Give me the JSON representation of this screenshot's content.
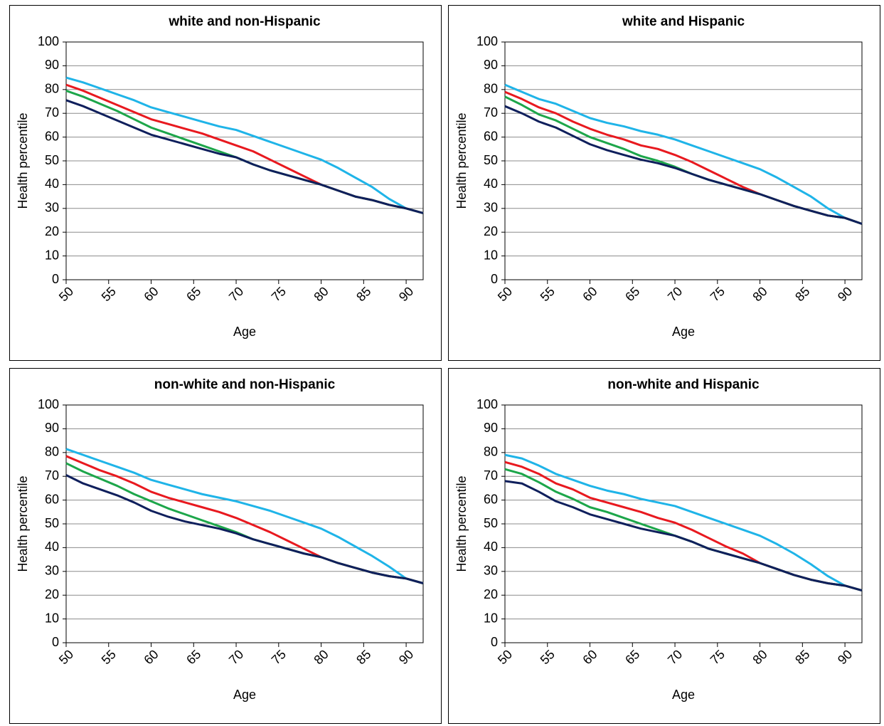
{
  "chart_data": [
    {
      "type": "line",
      "title": "white and non-Hispanic",
      "xlabel": "Age",
      "ylabel": "Health percentile",
      "x": [
        50,
        52,
        54,
        56,
        58,
        60,
        62,
        64,
        66,
        68,
        70,
        72,
        74,
        76,
        78,
        80,
        82,
        84,
        86,
        88,
        90,
        92
      ],
      "xlim": [
        50,
        92
      ],
      "xticks": [
        50,
        55,
        60,
        65,
        70,
        75,
        80,
        85,
        90
      ],
      "ylim": [
        0,
        100
      ],
      "yticks": [
        0,
        10,
        20,
        30,
        40,
        50,
        60,
        70,
        80,
        90,
        100
      ],
      "grid": true,
      "series": [
        {
          "color": "#1fb4e8",
          "values": [
            85,
            83,
            80.5,
            78,
            75.5,
            72.5,
            70.5,
            68.5,
            66.5,
            64.5,
            63,
            60.5,
            58,
            55.5,
            53,
            50.5,
            47,
            43,
            39,
            34,
            30,
            28
          ]
        },
        {
          "color": "#e8191f",
          "values": [
            82,
            79.5,
            76.5,
            73.5,
            70.5,
            67.5,
            65.5,
            63.5,
            61.5,
            59,
            56.5,
            54,
            50.5,
            47,
            43.5,
            40,
            37.5,
            35,
            33.5,
            31.5,
            30,
            28
          ]
        },
        {
          "color": "#1da64a",
          "values": [
            79.5,
            77,
            74,
            71,
            67.5,
            64,
            61.5,
            59,
            56.5,
            54,
            51.5,
            48.5,
            46,
            44,
            42,
            40,
            37.5,
            35,
            33.5,
            31.5,
            30,
            28
          ]
        },
        {
          "color": "#0f1f5c",
          "values": [
            75.5,
            73,
            70,
            67,
            64,
            61,
            59,
            57,
            55,
            53,
            51.5,
            48.5,
            46,
            44,
            42,
            40,
            37.5,
            35,
            33.5,
            31.5,
            30,
            28
          ]
        }
      ]
    },
    {
      "type": "line",
      "title": "white and Hispanic",
      "xlabel": "Age",
      "ylabel": "Health percentile",
      "x": [
        50,
        52,
        54,
        56,
        58,
        60,
        62,
        64,
        66,
        68,
        70,
        72,
        74,
        76,
        78,
        80,
        82,
        84,
        86,
        88,
        90,
        92
      ],
      "xlim": [
        50,
        92
      ],
      "xticks": [
        50,
        55,
        60,
        65,
        70,
        75,
        80,
        85,
        90
      ],
      "ylim": [
        0,
        100
      ],
      "yticks": [
        0,
        10,
        20,
        30,
        40,
        50,
        60,
        70,
        80,
        90,
        100
      ],
      "grid": true,
      "series": [
        {
          "color": "#1fb4e8",
          "values": [
            82,
            79,
            76,
            74,
            71,
            68,
            66,
            64.5,
            62.5,
            61,
            59,
            56.5,
            54,
            51.5,
            49,
            46.5,
            43,
            39,
            35,
            30,
            26,
            23.5
          ]
        },
        {
          "color": "#e8191f",
          "values": [
            79,
            76,
            72.5,
            70,
            66.5,
            63.5,
            61,
            59,
            56.5,
            55,
            52.5,
            49.5,
            46,
            42.5,
            39,
            36,
            33.5,
            31,
            29,
            27,
            26,
            23.5
          ]
        },
        {
          "color": "#1da64a",
          "values": [
            77,
            73.5,
            69.5,
            67,
            63.5,
            60,
            57.5,
            55,
            52,
            50,
            47.5,
            44.5,
            42,
            40,
            38,
            36,
            33.5,
            31,
            29,
            27,
            26,
            23.5
          ]
        },
        {
          "color": "#0f1f5c",
          "values": [
            73,
            70,
            66.5,
            64,
            60.5,
            57,
            54.5,
            52.5,
            50.5,
            49,
            47,
            44.5,
            42,
            40,
            38,
            36,
            33.5,
            31,
            29,
            27,
            26,
            23.5
          ]
        }
      ]
    },
    {
      "type": "line",
      "title": "non-white and non-Hispanic",
      "xlabel": "Age",
      "ylabel": "Health percentile",
      "x": [
        50,
        52,
        54,
        56,
        58,
        60,
        62,
        64,
        66,
        68,
        70,
        72,
        74,
        76,
        78,
        80,
        82,
        84,
        86,
        88,
        90,
        92
      ],
      "xlim": [
        50,
        92
      ],
      "xticks": [
        50,
        55,
        60,
        65,
        70,
        75,
        80,
        85,
        90
      ],
      "ylim": [
        0,
        100
      ],
      "yticks": [
        0,
        10,
        20,
        30,
        40,
        50,
        60,
        70,
        80,
        90,
        100
      ],
      "grid": true,
      "series": [
        {
          "color": "#1fb4e8",
          "values": [
            81.5,
            79,
            76.5,
            74,
            71.5,
            68.5,
            66.5,
            64.5,
            62.5,
            61,
            59.5,
            57.5,
            55.5,
            53,
            50.5,
            48,
            44.5,
            40.5,
            36.5,
            32,
            27,
            25
          ]
        },
        {
          "color": "#e8191f",
          "values": [
            78.5,
            75.5,
            72.5,
            70,
            67,
            63.5,
            61,
            59,
            57,
            55,
            52.5,
            49.5,
            46.5,
            43,
            39.5,
            36,
            33.5,
            31.5,
            29.5,
            28,
            27,
            25
          ]
        },
        {
          "color": "#1da64a",
          "values": [
            75.5,
            72,
            69,
            66,
            62.5,
            59.5,
            56.5,
            54,
            51.5,
            49,
            46.5,
            43.5,
            41.5,
            39.5,
            37.5,
            36,
            33.5,
            31.5,
            29.5,
            28,
            27,
            25
          ]
        },
        {
          "color": "#0f1f5c",
          "values": [
            70.5,
            67,
            64.5,
            62,
            59,
            55.5,
            53,
            51,
            49.5,
            48,
            46,
            43.5,
            41.5,
            39.5,
            37.5,
            36,
            33.5,
            31.5,
            29.5,
            28,
            27,
            25
          ]
        }
      ]
    },
    {
      "type": "line",
      "title": "non-white and Hispanic",
      "xlabel": "Age",
      "ylabel": "Health percentile",
      "x": [
        50,
        52,
        54,
        56,
        58,
        60,
        62,
        64,
        66,
        68,
        70,
        72,
        74,
        76,
        78,
        80,
        82,
        84,
        86,
        88,
        90,
        92
      ],
      "xlim": [
        50,
        92
      ],
      "xticks": [
        50,
        55,
        60,
        65,
        70,
        75,
        80,
        85,
        90
      ],
      "ylim": [
        0,
        100
      ],
      "yticks": [
        0,
        10,
        20,
        30,
        40,
        50,
        60,
        70,
        80,
        90,
        100
      ],
      "grid": true,
      "series": [
        {
          "color": "#1fb4e8",
          "values": [
            79,
            77.5,
            74.5,
            71,
            68.5,
            66,
            64,
            62.5,
            60.5,
            59,
            57.5,
            55,
            52.5,
            50,
            47.5,
            45,
            41.5,
            37.5,
            33,
            28,
            24,
            22
          ]
        },
        {
          "color": "#e8191f",
          "values": [
            76,
            74,
            71,
            67,
            64.5,
            61,
            59,
            57,
            55,
            52.5,
            50.5,
            47.5,
            44,
            40.5,
            37.5,
            33.5,
            31,
            28.5,
            26.5,
            25,
            24,
            22
          ]
        },
        {
          "color": "#1da64a",
          "values": [
            73,
            71,
            67.5,
            63.5,
            60.5,
            57,
            55,
            52.5,
            50,
            47.5,
            45,
            42.5,
            39.5,
            37.5,
            35.5,
            33.5,
            31,
            28.5,
            26.5,
            25,
            24,
            22
          ]
        },
        {
          "color": "#0f1f5c",
          "values": [
            68,
            67,
            63.5,
            59.5,
            57,
            54,
            52,
            50,
            48,
            46.5,
            45,
            42.5,
            39.5,
            37.5,
            35.5,
            33.5,
            31,
            28.5,
            26.5,
            25,
            24,
            22
          ]
        }
      ]
    }
  ]
}
